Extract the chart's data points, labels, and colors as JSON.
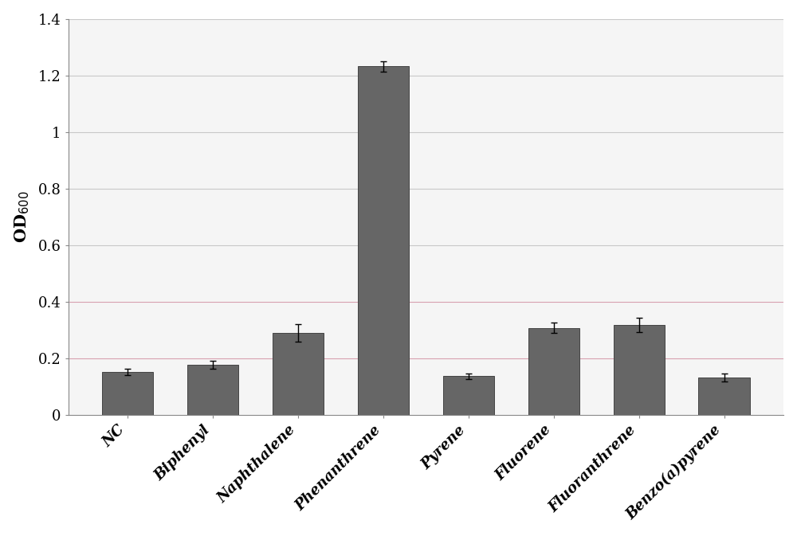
{
  "categories": [
    "NC",
    "Biphenyl",
    "Naphthalene",
    "Phenanthrene",
    "Pyrene",
    "Fluorene",
    "Fluoranthrene",
    "Benzo(a)pyrene"
  ],
  "values": [
    0.152,
    0.177,
    0.29,
    1.232,
    0.137,
    0.307,
    0.318,
    0.132
  ],
  "errors": [
    0.012,
    0.015,
    0.03,
    0.018,
    0.01,
    0.018,
    0.025,
    0.015
  ],
  "bar_color": "#666666",
  "bar_edgecolor": "#444444",
  "background_color": "#ffffff",
  "plot_bg_color": "#f5f5f5",
  "grid_color_normal": "#c8c8c8",
  "grid_color_pink": "#d8a0b0",
  "ylabel": "OD$_{600}$",
  "ylim": [
    0,
    1.4
  ],
  "yticks": [
    0,
    0.2,
    0.4,
    0.6,
    0.8,
    1.0,
    1.2,
    1.4
  ],
  "ytick_labels": [
    "0",
    "0.2",
    "0.4",
    "0.6",
    "0.8",
    "1",
    "1.2",
    "1.4"
  ],
  "ylabel_fontsize": 15,
  "tick_fontsize": 13,
  "xtick_fontsize": 13,
  "bar_width": 0.6,
  "figure_width": 10.0,
  "figure_height": 6.73
}
